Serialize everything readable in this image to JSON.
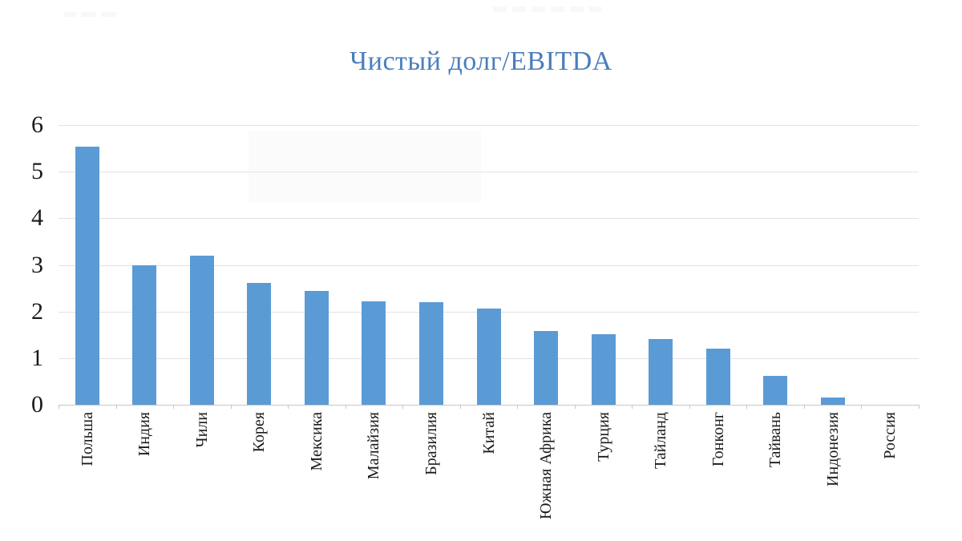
{
  "title": "Чистый долг/EBITDA",
  "chart_data": {
    "type": "bar",
    "title": "Чистый долг/EBITDA",
    "categories": [
      "Польша",
      "Индия",
      "Чили",
      "Корея",
      "Мексика",
      "Малайзия",
      "Бразилия",
      "Китай",
      "Южная Африка",
      "Турция",
      "Тайланд",
      "Гонконг",
      "Тайвань",
      "Индонезия",
      "Россия"
    ],
    "values": [
      5.54,
      3.0,
      3.2,
      2.62,
      2.44,
      2.22,
      2.2,
      2.06,
      1.58,
      1.51,
      1.41,
      1.2,
      0.62,
      0.15,
      0
    ],
    "xlabel": "",
    "ylabel": "",
    "ylim": [
      0,
      6
    ],
    "yticks": [
      0,
      1,
      2,
      3,
      4,
      5,
      6
    ],
    "grid": true,
    "legend_position": "none",
    "bar_color": "#5B9BD5",
    "title_color": "#4A7EBB",
    "gridline_color": "#e2e2e2",
    "axis_color": "#c6c6c6",
    "label_color": "#1a1a1a"
  }
}
